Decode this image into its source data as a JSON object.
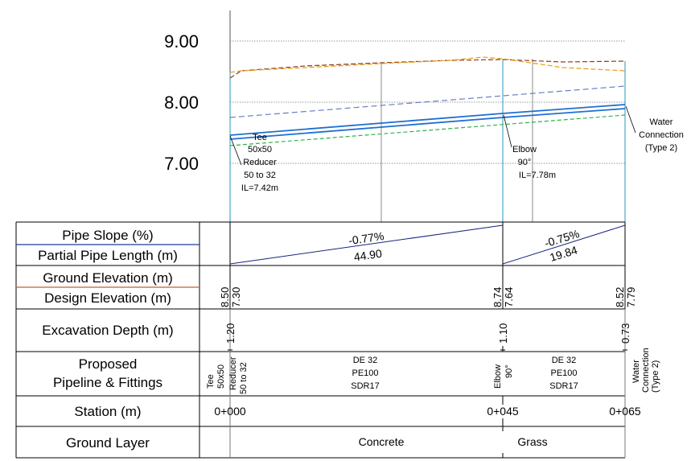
{
  "y_axis": {
    "ticks": [
      "9.00",
      "8.00",
      "7.00"
    ]
  },
  "annotations": {
    "start": [
      "Tee",
      "50x50",
      "Reducer",
      "50 to 32",
      "IL=7.42m"
    ],
    "elbow": [
      "Elbow",
      "90°",
      "IL=7.78m"
    ],
    "end": [
      "Water",
      "Connection",
      "(Type 2)"
    ]
  },
  "table": {
    "labels": {
      "pipe_slope": "Pipe Slope (%)",
      "partial_length": "Partial Pipe Length (m)",
      "ground_elev": "Ground Elevation (m)",
      "design_elev": "Design Elevation (m)",
      "excavation": "Excavation Depth (m)",
      "proposed_1": "Proposed",
      "proposed_2": "Pipeline & Fittings",
      "station": "Station (m)",
      "ground_layer": "Ground Layer"
    },
    "segments": [
      {
        "slope": "-0.77%",
        "length": "44.90"
      },
      {
        "slope": "-0.75%",
        "length": "19.84"
      }
    ],
    "elevations": [
      {
        "ground": "8.50",
        "design": "7.30"
      },
      {
        "ground": "8.74",
        "design": "7.64"
      },
      {
        "ground": "8.52",
        "design": "7.79"
      }
    ],
    "excavation_depths": [
      "1.20",
      "1.10",
      "0.73"
    ],
    "fittings": {
      "tee": [
        "Tee",
        "50x50"
      ],
      "reducer": [
        "Reducer",
        "50 to 32"
      ],
      "elbow": [
        "Elbow",
        "90°"
      ],
      "water": [
        "Water",
        "Connection",
        "(Type 2)"
      ]
    },
    "pipes": [
      [
        "DE 32",
        "PE100",
        "SDR17"
      ],
      [
        "DE 32",
        "PE100",
        "SDR17"
      ]
    ],
    "stations": [
      "0+000",
      "0+045",
      "0+065"
    ],
    "ground_layers": [
      "Concrete",
      "Grass"
    ]
  },
  "colors": {
    "pipe": "#1f6fd1",
    "ground": "#e8a21c",
    "ground_old": "#8b3a1a",
    "design_dashed": "#6b7fc4",
    "invert_dashed": "#2bb34a",
    "slope_line": "#1a237e",
    "station_marker": "#49a9c9"
  }
}
